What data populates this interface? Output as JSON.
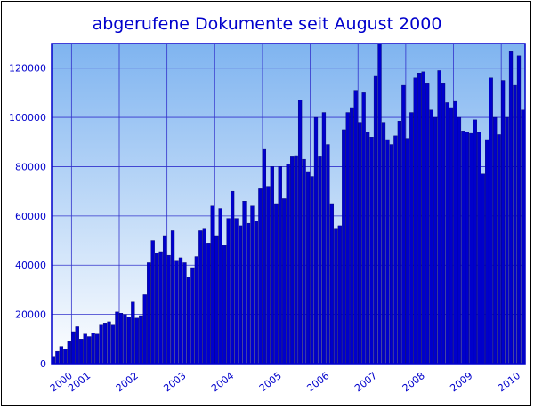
{
  "chart_data": {
    "type": "bar",
    "title": "abgerufene Dokumente seit August 2000",
    "xlabel": "",
    "ylabel": "",
    "ylim": [
      0,
      130000
    ],
    "yticks": [
      0,
      20000,
      40000,
      60000,
      80000,
      100000,
      120000
    ],
    "xticks": [
      "2000",
      "2001",
      "2002",
      "2003",
      "2004",
      "2005",
      "2006",
      "2007",
      "2008",
      "2009",
      "2010"
    ],
    "grid": true,
    "series_color": "#0000cc",
    "background_top": "#7fb4f0",
    "background_bottom": "#ffffff",
    "start": "2000-08",
    "values": [
      3000,
      5000,
      7000,
      6000,
      9000,
      13000,
      15000,
      10000,
      12000,
      11000,
      12500,
      12000,
      16000,
      16500,
      17000,
      16000,
      21000,
      20500,
      20000,
      19000,
      25000,
      18500,
      19500,
      28000,
      41000,
      50000,
      45000,
      45500,
      52000,
      44000,
      54000,
      42000,
      43000,
      41000,
      35000,
      39000,
      43500,
      54000,
      55000,
      49000,
      64000,
      52000,
      63000,
      48000,
      59000,
      70000,
      59000,
      56000,
      66000,
      57000,
      64000,
      58000,
      71000,
      87000,
      72000,
      80000,
      65000,
      80000,
      67000,
      81000,
      84000,
      84500,
      107000,
      83000,
      78000,
      76000,
      100000,
      84000,
      102000,
      89000,
      65000,
      55000,
      56000,
      95000,
      102000,
      104000,
      111000,
      98000,
      110000,
      94000,
      92000,
      117000,
      131000,
      98000,
      91000,
      89000,
      92500,
      98500,
      113000,
      91500,
      102000,
      116000,
      118000,
      118500,
      114000,
      103000,
      100000,
      119000,
      114000,
      106000,
      104000,
      106500,
      100000,
      94500,
      94000,
      93500,
      99000,
      94000,
      77000,
      91000,
      116000,
      100000,
      93000,
      115000,
      100000,
      127000,
      113000,
      125000,
      103000
    ]
  }
}
